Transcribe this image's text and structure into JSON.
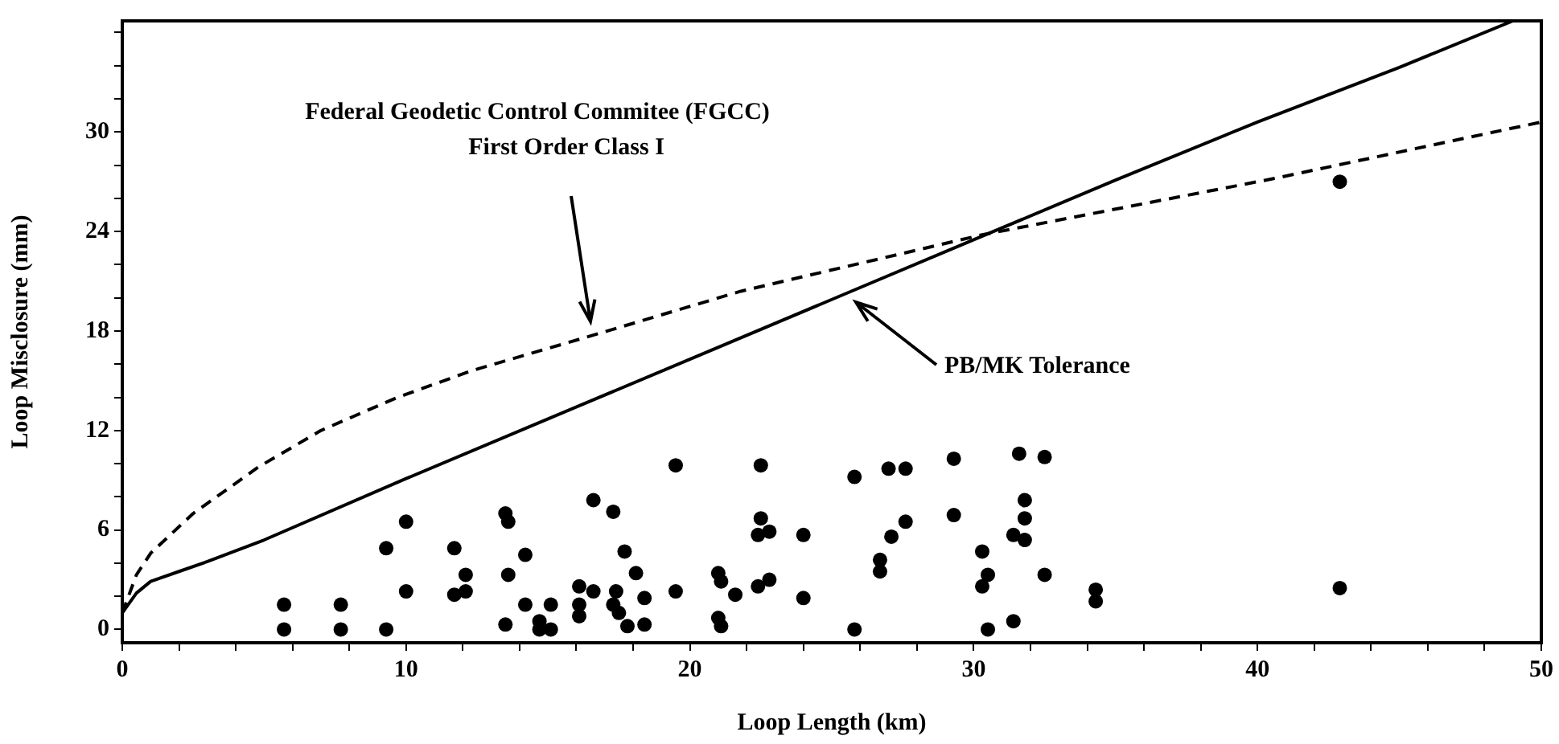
{
  "chart_data": {
    "type": "scatter",
    "xlabel": "Loop Length (km)",
    "ylabel": "Loop Misclosure (mm)",
    "xlim": [
      0,
      50
    ],
    "ylim": [
      -0.8,
      36.7
    ],
    "xticks": [
      0,
      {
        "value": 2,
        "label": null
      },
      {
        "value": 4,
        "label": null
      },
      {
        "value": 6,
        "label": null
      },
      {
        "value": 8,
        "label": null
      },
      10,
      {
        "value": 12,
        "label": null
      },
      {
        "value": 14,
        "label": null
      },
      {
        "value": 16,
        "label": null
      },
      {
        "value": 18,
        "label": null
      },
      20,
      {
        "value": 22,
        "label": null
      },
      {
        "value": 24,
        "label": null
      },
      {
        "value": 26,
        "label": null
      },
      {
        "value": 28,
        "label": null
      },
      30,
      {
        "value": 32,
        "label": null
      },
      {
        "value": 34,
        "label": null
      },
      {
        "value": 36,
        "label": null
      },
      {
        "value": 38,
        "label": null
      },
      40,
      {
        "value": 42,
        "label": null
      },
      {
        "value": 44,
        "label": null
      },
      {
        "value": 46,
        "label": null
      },
      {
        "value": 48,
        "label": null
      },
      50
    ],
    "yticks": [
      0,
      {
        "value": 2,
        "label": null
      },
      {
        "value": 4,
        "label": null
      },
      6,
      {
        "value": 8,
        "label": null
      },
      {
        "value": 10,
        "label": null
      },
      12,
      {
        "value": 14,
        "label": null
      },
      {
        "value": 16,
        "label": null
      },
      18,
      {
        "value": 20,
        "label": null
      },
      {
        "value": 22,
        "label": null
      },
      24,
      {
        "value": 26,
        "label": null
      },
      {
        "value": 28,
        "label": null
      },
      30,
      {
        "value": 32,
        "label": null
      },
      {
        "value": 34,
        "label": null
      },
      {
        "value": 36,
        "label": null
      }
    ],
    "grid": false,
    "legend": false,
    "annotations": [
      "Federal Geodetic Control Commitee (FGCC)",
      "First Order Class I",
      "PB/MK Tolerance"
    ],
    "series": [
      {
        "type": "line",
        "color": "#000000",
        "line_style": "dashed",
        "marker": "none",
        "x": [
          0,
          0.5,
          1,
          2.5,
          4.8,
          7,
          9.7,
          12.3,
          16.5,
          21.8,
          30.3,
          40.6,
          50
        ],
        "values": [
          1,
          3.3,
          4.6,
          7,
          9.8,
          12,
          14,
          15.6,
          17.7,
          20.4,
          23.8,
          27.2,
          30.6
        ]
      },
      {
        "type": "line",
        "color": "#000000",
        "line_style": "solid",
        "marker": "none",
        "x": [
          0,
          0.5,
          1,
          2,
          3,
          5,
          10,
          15,
          20,
          25,
          30,
          35,
          40,
          45,
          49
        ],
        "values": [
          1,
          2.2,
          2.9,
          3.5,
          4.1,
          5.4,
          9.1,
          12.7,
          16.3,
          19.9,
          23.5,
          27.1,
          30.6,
          33.9,
          36.7
        ]
      },
      {
        "type": "scatter",
        "color": "#000000",
        "marker": "circle",
        "x": [
          5.7,
          5.7,
          7.7,
          7.7,
          9.3,
          9.3,
          10,
          10,
          11.7,
          11.7,
          12.1,
          12.1,
          13.5,
          13.6,
          13.6,
          13.5,
          14.2,
          14.2,
          14.7,
          14.7,
          15.1,
          15.1,
          16.1,
          16.1,
          16.1,
          16.6,
          16.6,
          17.3,
          17.7,
          17.4,
          17.3,
          17.5,
          17.8,
          18.1,
          18.4,
          18.4,
          19.5,
          19.5,
          21,
          21.1,
          21,
          21.1,
          21.6,
          22.5,
          22.5,
          22.4,
          22.8,
          22.4,
          22.8,
          24,
          24,
          25.8,
          25.8,
          26.7,
          26.7,
          27,
          27.6,
          27.1,
          27.6,
          29.3,
          29.3,
          30.3,
          30.5,
          30.3,
          30.5,
          31.4,
          31.6,
          31.8,
          31.8,
          31.4,
          31.8,
          32.5,
          32.5,
          34.3,
          34.3,
          42.9,
          42.9
        ],
        "values": [
          1.5,
          0,
          1.5,
          0,
          0,
          4.9,
          6.5,
          2.3,
          4.9,
          2.1,
          2.3,
          3.3,
          7,
          6.5,
          3.3,
          0.3,
          4.5,
          1.5,
          0.5,
          0,
          1.5,
          0,
          2.6,
          1.5,
          0.8,
          7.8,
          2.3,
          7.1,
          4.7,
          2.3,
          1.5,
          1,
          0.2,
          3.4,
          1.9,
          0.3,
          9.9,
          2.3,
          3.4,
          2.9,
          0.7,
          0.2,
          2.1,
          9.9,
          6.7,
          5.7,
          5.9,
          2.6,
          3,
          5.7,
          1.9,
          9.2,
          0,
          4.2,
          3.5,
          9.7,
          9.7,
          5.6,
          6.5,
          10.3,
          6.9,
          4.7,
          3.3,
          2.6,
          0,
          0.5,
          10.6,
          7.8,
          6.7,
          5.7,
          5.4,
          10.4,
          3.3,
          2.4,
          1.7,
          27,
          2.5
        ]
      }
    ]
  }
}
